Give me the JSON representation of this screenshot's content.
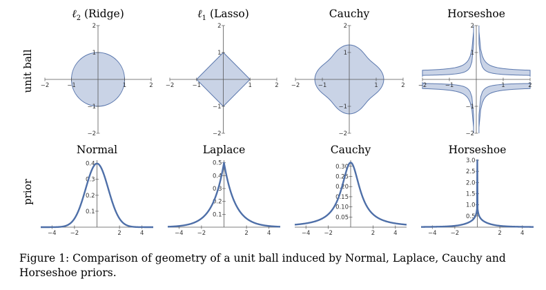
{
  "row_labels": [
    "unit ball",
    "prior"
  ],
  "caption": "Figure 1: Comparison of geometry of a unit ball induced by Normal, Laplace, Cauchy and Horseshoe priors.",
  "colors": {
    "fill": "#c9d3e6",
    "stroke": "#5a77ad",
    "curve": "#4e6fa8",
    "axis": "#555555"
  },
  "chart_data": [
    {
      "type": "area",
      "title": "ℓ2 (Ridge)",
      "shape": "circle",
      "xlim": [
        -2,
        2
      ],
      "ylim": [
        -2,
        2
      ],
      "xticks": [
        -2,
        -1,
        1,
        2
      ],
      "yticks": [
        -2,
        -1,
        1,
        2
      ],
      "xtick_labels": [
        "−2",
        "−1",
        "1",
        "2"
      ],
      "ytick_labels": [
        "−2",
        "−1",
        "1",
        "2"
      ]
    },
    {
      "type": "area",
      "title": "ℓ1 (Lasso)",
      "shape": "diamond",
      "xlim": [
        -2,
        2
      ],
      "ylim": [
        -2,
        2
      ],
      "xticks": [
        -2,
        -1,
        1,
        2
      ],
      "yticks": [
        -2,
        -1,
        1,
        2
      ],
      "xtick_labels": [
        "−2",
        "−1",
        "1",
        "2"
      ],
      "ytick_labels": [
        "−2",
        "−1",
        "1",
        "2"
      ]
    },
    {
      "type": "area",
      "title": "Cauchy",
      "shape": "cauchy",
      "xlim": [
        -2,
        2
      ],
      "ylim": [
        -2,
        2
      ],
      "xticks": [
        -2,
        -1,
        1,
        2
      ],
      "yticks": [
        -2,
        -1,
        1,
        2
      ],
      "xtick_labels": [
        "−2",
        "−1",
        "1",
        "2"
      ],
      "ytick_labels": [
        "−2",
        "−1",
        "1",
        "2"
      ]
    },
    {
      "type": "area",
      "title": "Horseshoe",
      "shape": "horseshoe",
      "xlim": [
        -2,
        2
      ],
      "ylim": [
        -2,
        2
      ],
      "xticks": [
        -2,
        -1,
        1,
        2
      ],
      "yticks": [
        -2,
        -1,
        1,
        2
      ],
      "xtick_labels": [
        "−2",
        "−1",
        "1",
        "2"
      ],
      "ytick_labels": [
        "−2",
        "−1",
        "1",
        "2"
      ]
    },
    {
      "type": "line",
      "title": "Normal",
      "density": "normal",
      "xlim": [
        -5,
        5
      ],
      "ylim": [
        0,
        0.42
      ],
      "xticks": [
        -4,
        -2,
        2,
        4
      ],
      "xtick_labels": [
        "−4",
        "−2",
        "2",
        "4"
      ],
      "yticks": [
        0.1,
        0.2,
        0.3,
        0.4
      ],
      "ytick_labels": [
        "0.1",
        "0.2",
        "0.3",
        "0.4"
      ],
      "x": [
        -5,
        -4,
        -3,
        -2,
        -1,
        0,
        1,
        2,
        3,
        4,
        5
      ],
      "y": [
        0.0,
        0.0001,
        0.0044,
        0.054,
        0.242,
        0.399,
        0.242,
        0.054,
        0.0044,
        0.0001,
        0.0
      ]
    },
    {
      "type": "line",
      "title": "Laplace",
      "density": "laplace",
      "xlim": [
        -5,
        5
      ],
      "ylim": [
        0,
        0.52
      ],
      "xticks": [
        -4,
        -2,
        2,
        4
      ],
      "xtick_labels": [
        "−4",
        "−2",
        "2",
        "4"
      ],
      "yticks": [
        0.1,
        0.2,
        0.3,
        0.4,
        0.5
      ],
      "ytick_labels": [
        "0.1",
        "0.2",
        "0.3",
        "0.4",
        "0.5"
      ],
      "x": [
        -5,
        -4,
        -3,
        -2,
        -1,
        0,
        1,
        2,
        3,
        4,
        5
      ],
      "y": [
        0.0034,
        0.0092,
        0.025,
        0.068,
        0.184,
        0.5,
        0.184,
        0.068,
        0.025,
        0.0092,
        0.0034
      ]
    },
    {
      "type": "line",
      "title": "Cauchy",
      "density": "cauchy",
      "xlim": [
        -5,
        5
      ],
      "ylim": [
        0,
        0.33
      ],
      "xticks": [
        -4,
        -2,
        2,
        4
      ],
      "xtick_labels": [
        "−4",
        "−2",
        "2",
        "4"
      ],
      "yticks": [
        0.05,
        0.1,
        0.15,
        0.2,
        0.25,
        0.3
      ],
      "ytick_labels": [
        "0.05",
        "0.10",
        "0.15",
        "0.20",
        "0.25",
        "0.30"
      ],
      "x": [
        -5,
        -4,
        -3,
        -2,
        -1,
        0,
        1,
        2,
        3,
        4,
        5
      ],
      "y": [
        0.012,
        0.019,
        0.032,
        0.064,
        0.159,
        0.318,
        0.159,
        0.064,
        0.032,
        0.019,
        0.012
      ]
    },
    {
      "type": "line",
      "title": "Horseshoe",
      "density": "horseshoe",
      "xlim": [
        -5,
        5
      ],
      "ylim": [
        0,
        3.0
      ],
      "xticks": [
        -4,
        -2,
        2,
        4
      ],
      "xtick_labels": [
        "−4",
        "−2",
        "2",
        "4"
      ],
      "yticks": [
        0.5,
        1.0,
        1.5,
        2.0,
        2.5,
        3.0
      ],
      "ytick_labels": [
        "0.5",
        "1.0",
        "1.5",
        "2.0",
        "2.5",
        "3.0"
      ],
      "x": [
        -5,
        -4,
        -3,
        -2,
        -1,
        -0.5,
        -0.1,
        0,
        0.1,
        0.5,
        1,
        2,
        3,
        4,
        5
      ],
      "y": [
        0.012,
        0.018,
        0.03,
        0.06,
        0.16,
        0.38,
        1.5,
        3.0,
        1.5,
        0.38,
        0.16,
        0.06,
        0.03,
        0.018,
        0.012
      ]
    }
  ]
}
